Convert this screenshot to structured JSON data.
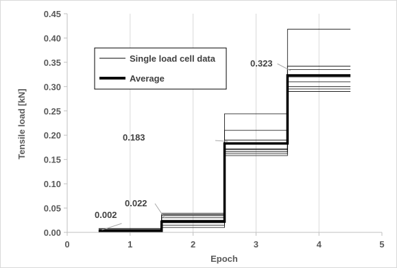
{
  "chart_data": {
    "type": "line",
    "title": "",
    "xlabel": "Epoch",
    "ylabel": "Tensile load [kN]",
    "xlim": [
      0,
      5
    ],
    "ylim": [
      0,
      0.45
    ],
    "x_ticks": [
      "0",
      "1",
      "2",
      "3",
      "4",
      "5"
    ],
    "y_ticks": [
      "0.00",
      "0.05",
      "0.10",
      "0.15",
      "0.20",
      "0.25",
      "0.30",
      "0.35",
      "0.40",
      "0.45"
    ],
    "grid": "vertical",
    "legend": {
      "position": "upper-left",
      "entries": [
        {
          "name": "Single load cell data",
          "style": "thin"
        },
        {
          "name": "Average",
          "style": "thick"
        }
      ]
    },
    "epochs": [
      {
        "x_range": [
          0.5,
          1.5
        ],
        "single_values": [
          0.0,
          0.001,
          0.002,
          0.003,
          0.004,
          0.005,
          0.006,
          0.008
        ],
        "average": 0.002,
        "label": "0.002"
      },
      {
        "x_range": [
          1.5,
          2.5
        ],
        "single_values": [
          0.01,
          0.015,
          0.02,
          0.025,
          0.03,
          0.034,
          0.036,
          0.038
        ],
        "average": 0.022,
        "label": "0.022"
      },
      {
        "x_range": [
          2.5,
          3.5
        ],
        "single_values": [
          0.158,
          0.162,
          0.166,
          0.17,
          0.172,
          0.19,
          0.21,
          0.244
        ],
        "average": 0.183,
        "label": "0.183"
      },
      {
        "x_range": [
          3.5,
          4.5
        ],
        "single_values": [
          0.29,
          0.295,
          0.3,
          0.31,
          0.32,
          0.335,
          0.342,
          0.418
        ],
        "average": 0.323,
        "label": "0.323"
      }
    ],
    "colors": {
      "thin_line": "#000000",
      "average_line": "#000000",
      "epoch2_band": "#7f7f7f",
      "grid": "#d9d9d9"
    }
  }
}
